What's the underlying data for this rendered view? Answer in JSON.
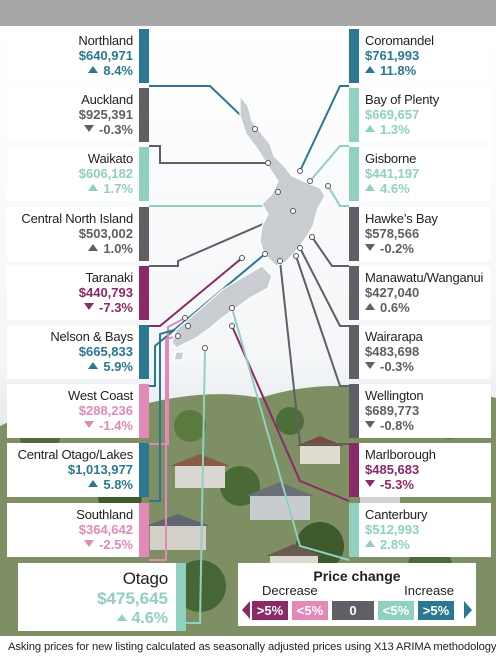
{
  "colors": {
    "dec_strong": "#8a2a66",
    "dec_mild": "#e289b8",
    "neutral": "#5f6066",
    "inc_mild": "#8fd0c1",
    "inc_strong": "#2c7892"
  },
  "regions_left": [
    {
      "name": "Northland",
      "price": "$640,971",
      "change": "8.4%",
      "dir": "up",
      "cat": "inc_strong"
    },
    {
      "name": "Auckland",
      "price": "$925,391",
      "change": "-0.3%",
      "dir": "down",
      "cat": "neutral"
    },
    {
      "name": "Waikato",
      "price": "$606,182",
      "change": "1.7%",
      "dir": "up",
      "cat": "inc_mild"
    },
    {
      "name": "Central North Island",
      "price": "$503,002",
      "change": "1.0%",
      "dir": "up",
      "cat": "neutral"
    },
    {
      "name": "Taranaki",
      "price": "$440,793",
      "change": "-7.3%",
      "dir": "down",
      "cat": "dec_strong"
    },
    {
      "name": "Nelson & Bays",
      "price": "$665,833",
      "change": "5.9%",
      "dir": "up",
      "cat": "inc_strong"
    },
    {
      "name": "West Coast",
      "price": "$288,236",
      "change": "-1.4%",
      "dir": "down",
      "cat": "dec_mild"
    },
    {
      "name": "Central Otago/Lakes",
      "price": "$1,013,977",
      "change": "5.8%",
      "dir": "up",
      "cat": "inc_strong"
    },
    {
      "name": "Southland",
      "price": "$364,642",
      "change": "-2.5%",
      "dir": "down",
      "cat": "dec_mild"
    }
  ],
  "regions_right": [
    {
      "name": "Coromandel",
      "price": "$761,993",
      "change": "11.8%",
      "dir": "up",
      "cat": "inc_strong"
    },
    {
      "name": "Bay of Plenty",
      "price": "$669,657",
      "change": "1.3%",
      "dir": "up",
      "cat": "inc_mild"
    },
    {
      "name": "Gisborne",
      "price": "$441,197",
      "change": "4.6%",
      "dir": "up",
      "cat": "inc_mild"
    },
    {
      "name": "Hawke’s Bay",
      "price": "$578,566",
      "change": "-0.2%",
      "dir": "down",
      "cat": "neutral"
    },
    {
      "name": "Manawatu/Wanganui",
      "price": "$427,040",
      "change": "0.6%",
      "dir": "up",
      "cat": "neutral"
    },
    {
      "name": "Wairarapa",
      "price": "$483,698",
      "change": "-0.3%",
      "dir": "down",
      "cat": "neutral"
    },
    {
      "name": "Wellington",
      "price": "$689,773",
      "change": "-0.8%",
      "dir": "down",
      "cat": "neutral"
    },
    {
      "name": "Marlborough",
      "price": "$485,683",
      "change": "-5.3%",
      "dir": "down",
      "cat": "dec_strong"
    },
    {
      "name": "Canterbury",
      "price": "$512,993",
      "change": "2.8%",
      "dir": "up",
      "cat": "inc_mild"
    }
  ],
  "otago": {
    "name": "Otago",
    "price": "$475,645",
    "change": "4.6%",
    "dir": "up",
    "cat": "inc_mild"
  },
  "legend": {
    "title": "Price change",
    "decrease_label": "Decrease",
    "increase_label": "Increase",
    "items": [
      {
        "label": ">5%",
        "cat": "dec_strong"
      },
      {
        "label": "<5%",
        "cat": "dec_mild"
      },
      {
        "label": "0",
        "cat": "neutral"
      },
      {
        "label": "<5%",
        "cat": "inc_mild"
      },
      {
        "label": ">5%",
        "cat": "inc_strong"
      }
    ]
  },
  "footnote": "Asking prices for new listing calculated as seasonally adjusted prices using X13 ARIMA methodology."
}
